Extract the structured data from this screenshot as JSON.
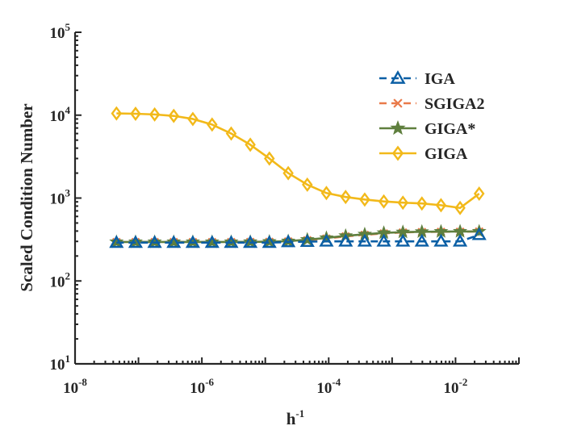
{
  "chart_data": {
    "type": "line",
    "title": "",
    "xlabel": {
      "base": "h",
      "exp": "-1"
    },
    "ylabel": "Scaled Condition Number",
    "xscale": "log",
    "yscale": "log",
    "xlim": [
      1e-08,
      0.1
    ],
    "ylim": [
      10,
      100000
    ],
    "x_ticks": [
      {
        "base": "10",
        "exp": "-8",
        "value": 1e-08
      },
      {
        "base": "10",
        "exp": "-6",
        "value": 1e-06
      },
      {
        "base": "10",
        "exp": "-4",
        "value": 0.0001
      },
      {
        "base": "10",
        "exp": "-2",
        "value": 0.01
      }
    ],
    "y_ticks": [
      {
        "base": "10",
        "exp": "1",
        "value": 10
      },
      {
        "base": "10",
        "exp": "2",
        "value": 100
      },
      {
        "base": "10",
        "exp": "3",
        "value": 1000
      },
      {
        "base": "10",
        "exp": "4",
        "value": 10000
      },
      {
        "base": "10",
        "exp": "5",
        "value": 100000
      }
    ],
    "x": [
      4.5e-08,
      9e-08,
      1.8e-07,
      3.6e-07,
      7.2e-07,
      1.45e-06,
      2.9e-06,
      5.8e-06,
      1.16e-05,
      2.3e-05,
      4.6e-05,
      9.2e-05,
      0.000185,
      0.00037,
      0.00074,
      0.00148,
      0.00295,
      0.0059,
      0.0118,
      0.0236
    ],
    "series": [
      {
        "name": "IGA",
        "color": "#0b5fa5",
        "marker": "triangle",
        "linestyle": "dashed",
        "values": [
          290,
          290,
          290,
          290,
          290,
          290,
          290,
          290,
          290,
          295,
          298,
          300,
          300,
          300,
          300,
          300,
          300,
          300,
          300,
          360
        ]
      },
      {
        "name": "SGIGA2",
        "color": "#e97a4a",
        "marker": "x",
        "linestyle": "dashed",
        "values": [
          295,
          295,
          295,
          295,
          295,
          295,
          295,
          296,
          297,
          300,
          310,
          325,
          345,
          360,
          375,
          385,
          390,
          392,
          393,
          395
        ]
      },
      {
        "name": "GIGA*",
        "color": "#5f7f3e",
        "marker": "star",
        "linestyle": "solid",
        "values": [
          295,
          295,
          295,
          295,
          295,
          295,
          295,
          296,
          298,
          302,
          315,
          330,
          350,
          365,
          380,
          388,
          392,
          394,
          395,
          395
        ]
      },
      {
        "name": "GIGA",
        "color": "#f2b91a",
        "marker": "diamond",
        "linestyle": "solid",
        "values": [
          10500,
          10400,
          10200,
          9800,
          9000,
          7700,
          6000,
          4400,
          3000,
          2000,
          1450,
          1150,
          1030,
          960,
          910,
          880,
          860,
          820,
          760,
          1130
        ]
      }
    ],
    "legend_position": "top-right",
    "grid": false
  }
}
